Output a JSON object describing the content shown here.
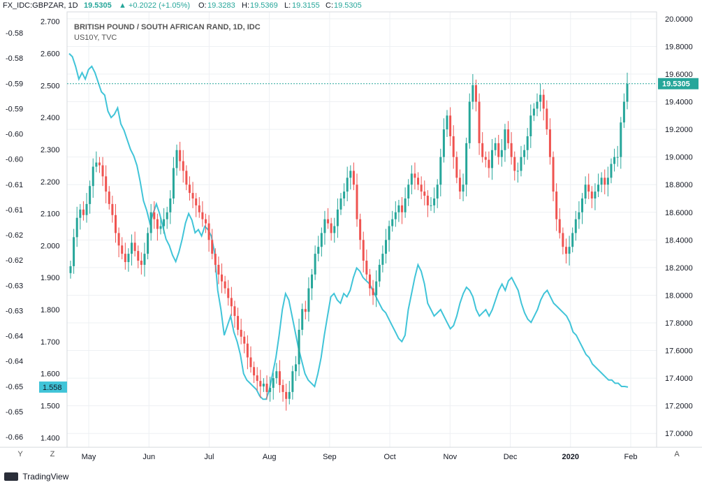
{
  "header": {
    "symbol": "FX_IDC:GBPZAR, 1D",
    "last": "19.5305",
    "change": "▲ +0.2022 (+1.05%)",
    "o_label": "O:",
    "o": "19.3283",
    "h_label": "H:",
    "h": "19.5369",
    "l_label": "L:",
    "l": "19.3155",
    "c_label": "C:",
    "c": "19.5305"
  },
  "legend": {
    "title": "BRITISH POUND / SOUTH AFRICAN RAND, 1D, IDC",
    "sub": "US10Y, TVC"
  },
  "footer": {
    "brand": "TradingView",
    "left_btn1": "Y",
    "left_btn2": "Z",
    "right_btn": "A"
  },
  "colors": {
    "up": "#26a69a",
    "down": "#ef5350",
    "line": "#40c4d8",
    "grid": "#eef0f3"
  },
  "chart_data": {
    "type": "candlestick+line",
    "x_ticks": [
      "May",
      "Jun",
      "Jul",
      "Aug",
      "Sep",
      "Oct",
      "Nov",
      "Dec",
      "2020",
      "Feb"
    ],
    "right_axis": {
      "ticks": [
        "20.0000",
        "19.8000",
        "19.6000",
        "19.4000",
        "19.2000",
        "19.0000",
        "18.8000",
        "18.6000",
        "18.4000",
        "18.2000",
        "18.0000",
        "17.8000",
        "17.6000",
        "17.4000",
        "17.2000",
        "17.0000"
      ],
      "range": [
        16.9,
        20.05
      ],
      "current_label": "19.5305",
      "current": 19.5305
    },
    "mid_axis": {
      "ticks": [
        "2.700",
        "2.600",
        "2.500",
        "2.400",
        "2.300",
        "2.200",
        "2.100",
        "2.000",
        "1.900",
        "1.800",
        "1.700",
        "1.600",
        "1.500",
        "1.400"
      ],
      "range": [
        1.37,
        2.73
      ],
      "current_label": "1.558",
      "current": 1.558
    },
    "left_axis": {
      "ticks": [
        "-0.58",
        "-0.58",
        "-0.59",
        "-0.59",
        "-0.60",
        "-0.60",
        "-0.61",
        "-0.61",
        "-0.62",
        "-0.62",
        "-0.63",
        "-0.63",
        "-0.64",
        "-0.64",
        "-0.65",
        "-0.65",
        "-0.66"
      ]
    },
    "series": [
      {
        "name": "GBPZAR",
        "kind": "candles",
        "close": [
          18.21,
          18.42,
          18.56,
          18.62,
          18.58,
          18.66,
          18.79,
          18.93,
          18.96,
          18.94,
          18.86,
          18.75,
          18.66,
          18.58,
          18.45,
          18.36,
          18.3,
          18.24,
          18.3,
          18.38,
          18.32,
          18.25,
          18.22,
          18.3,
          18.45,
          18.6,
          18.55,
          18.48,
          18.5,
          18.55,
          18.6,
          18.7,
          18.92,
          19.05,
          18.97,
          18.9,
          18.8,
          18.74,
          18.7,
          18.65,
          18.6,
          18.55,
          18.52,
          18.4,
          18.3,
          18.22,
          18.15,
          18.1,
          18.05,
          17.98,
          17.92,
          17.85,
          17.75,
          17.7,
          17.65,
          17.55,
          17.48,
          17.42,
          17.38,
          17.34,
          17.36,
          17.3,
          17.33,
          17.4,
          17.45,
          17.35,
          17.3,
          17.25,
          17.3,
          17.45,
          17.5,
          17.75,
          17.9,
          17.88,
          18.05,
          18.15,
          18.3,
          18.35,
          18.45,
          18.55,
          18.52,
          18.45,
          18.5,
          18.62,
          18.7,
          18.75,
          18.85,
          18.9,
          18.8,
          18.55,
          18.4,
          18.25,
          18.15,
          18.05,
          18.0,
          18.1,
          18.22,
          18.3,
          18.4,
          18.5,
          18.55,
          18.6,
          18.65,
          18.6,
          18.7,
          18.8,
          18.88,
          18.85,
          18.8,
          18.75,
          18.72,
          18.65,
          18.65,
          18.7,
          18.8,
          19.0,
          19.2,
          19.3,
          19.15,
          19.0,
          18.85,
          18.75,
          18.8,
          19.1,
          19.4,
          19.52,
          19.4,
          19.1,
          19.0,
          18.98,
          18.92,
          19.05,
          19.1,
          19.0,
          19.05,
          19.2,
          19.1,
          19.0,
          18.9,
          18.9,
          19.0,
          19.05,
          19.15,
          19.3,
          19.35,
          19.4,
          19.45,
          19.35,
          19.2,
          19.0,
          18.75,
          18.55,
          18.45,
          18.35,
          18.3,
          18.35,
          18.45,
          18.55,
          18.6,
          18.7,
          18.8,
          18.75,
          18.7,
          18.75,
          18.8,
          18.85,
          18.8,
          18.85,
          18.95,
          19.0,
          19.0,
          19.25,
          19.4,
          19.53
        ]
      },
      {
        "name": "US10Y",
        "kind": "line",
        "values": [
          2.6,
          2.59,
          2.56,
          2.52,
          2.54,
          2.52,
          2.55,
          2.56,
          2.54,
          2.51,
          2.48,
          2.47,
          2.42,
          2.4,
          2.41,
          2.43,
          2.38,
          2.36,
          2.33,
          2.3,
          2.28,
          2.25,
          2.2,
          2.14,
          2.11,
          2.07,
          2.1,
          2.13,
          2.1,
          2.06,
          2.02,
          2.0,
          1.97,
          1.95,
          1.98,
          2.02,
          2.07,
          2.1,
          2.08,
          2.04,
          2.05,
          2.03,
          2.06,
          2.05,
          2.03,
          1.98,
          1.86,
          1.8,
          1.72,
          1.75,
          1.78,
          1.73,
          1.7,
          1.66,
          1.6,
          1.58,
          1.57,
          1.56,
          1.55,
          1.53,
          1.52,
          1.52,
          1.55,
          1.6,
          1.65,
          1.72,
          1.8,
          1.85,
          1.83,
          1.78,
          1.73,
          1.68,
          1.64,
          1.6,
          1.58,
          1.57,
          1.56,
          1.6,
          1.65,
          1.72,
          1.78,
          1.84,
          1.85,
          1.83,
          1.82,
          1.85,
          1.84,
          1.86,
          1.9,
          1.93,
          1.92,
          1.9,
          1.89,
          1.88,
          1.86,
          1.84,
          1.82,
          1.8,
          1.79,
          1.77,
          1.75,
          1.73,
          1.71,
          1.7,
          1.72,
          1.8,
          1.85,
          1.9,
          1.94,
          1.92,
          1.88,
          1.82,
          1.8,
          1.78,
          1.79,
          1.8,
          1.78,
          1.76,
          1.74,
          1.75,
          1.78,
          1.82,
          1.85,
          1.87,
          1.86,
          1.84,
          1.8,
          1.78,
          1.79,
          1.8,
          1.78,
          1.8,
          1.83,
          1.86,
          1.88,
          1.86,
          1.89,
          1.9,
          1.88,
          1.86,
          1.82,
          1.79,
          1.77,
          1.76,
          1.78,
          1.8,
          1.83,
          1.85,
          1.86,
          1.84,
          1.82,
          1.81,
          1.8,
          1.79,
          1.78,
          1.76,
          1.73,
          1.72,
          1.7,
          1.68,
          1.66,
          1.65,
          1.63,
          1.62,
          1.61,
          1.6,
          1.59,
          1.58,
          1.58,
          1.57,
          1.57,
          1.56,
          1.56,
          1.558
        ]
      }
    ]
  }
}
